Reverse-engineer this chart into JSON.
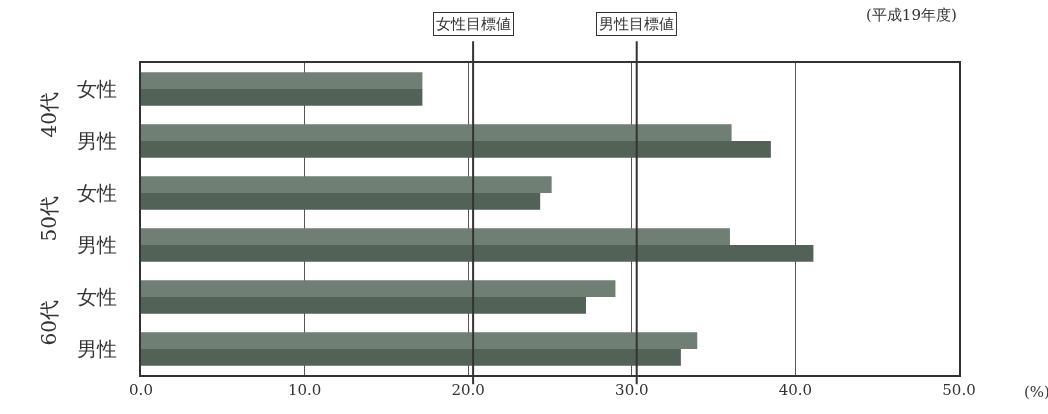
{
  "chart_data": {
    "type": "bar",
    "orientation": "horizontal",
    "title": "(平成19年度)",
    "xlabel": "(%)",
    "categories": [
      "女性",
      "男性",
      "女性",
      "男性",
      "女性",
      "男性"
    ],
    "annotations": [
      "40代",
      "50代",
      "60代"
    ],
    "series": [
      {
        "color": "#6f7f73",
        "values": [
          17.2,
          36.1,
          25.1,
          36.0,
          29.0,
          34.0
        ]
      },
      {
        "color": "#526257",
        "values": [
          17.2,
          38.5,
          24.4,
          41.1,
          27.2,
          33.0
        ]
      }
    ],
    "xlim": [
      0,
      50
    ],
    "xticks": [
      {
        "value": 0,
        "label": "0.0"
      },
      {
        "value": 10,
        "label": "10.0"
      },
      {
        "value": 20,
        "label": "20.0"
      },
      {
        "value": 30,
        "label": "30.0"
      },
      {
        "value": 40,
        "label": "40.0"
      },
      {
        "value": 50,
        "label": "50.0"
      }
    ],
    "ref_lines": [
      {
        "axis": "x",
        "value": 20.3,
        "label": "女性目標値",
        "color": "#333333"
      },
      {
        "axis": "x",
        "value": 30.3,
        "label": "男性目標値",
        "color": "#333333"
      }
    ],
    "grid": "x"
  }
}
